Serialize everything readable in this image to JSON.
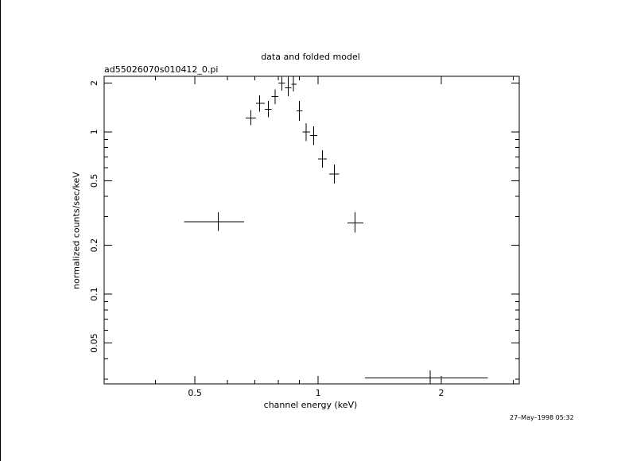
{
  "chart_data": {
    "type": "scatter",
    "title": "data and folded model",
    "subtitle": "ad55026070s010412_0.pi",
    "xlabel": "channel energy (keV)",
    "ylabel": "normalized counts/sec/keV",
    "xscale": "log",
    "yscale": "log",
    "xlim": [
      0.3,
      3.1
    ],
    "ylim": [
      0.028,
      2.2
    ],
    "x_tick_labels": [
      "0.5",
      "1",
      "2"
    ],
    "x_tick_values": [
      0.5,
      1,
      2
    ],
    "y_tick_labels": [
      "0.05",
      "0.1",
      "0.2",
      "0.5",
      "1",
      "2"
    ],
    "y_tick_values": [
      0.05,
      0.1,
      0.2,
      0.5,
      1,
      2
    ],
    "series": [
      {
        "points": [
          {
            "x": 0.57,
            "xlo": 0.47,
            "xhi": 0.66,
            "y": 0.28,
            "ylo": 0.245,
            "yhi": 0.32
          },
          {
            "x": 0.685,
            "xlo": 0.665,
            "xhi": 0.705,
            "y": 1.22,
            "ylo": 1.1,
            "yhi": 1.36
          },
          {
            "x": 0.72,
            "xlo": 0.705,
            "xhi": 0.74,
            "y": 1.5,
            "ylo": 1.33,
            "yhi": 1.68
          },
          {
            "x": 0.755,
            "xlo": 0.74,
            "xhi": 0.77,
            "y": 1.38,
            "ylo": 1.23,
            "yhi": 1.55
          },
          {
            "x": 0.785,
            "xlo": 0.77,
            "xhi": 0.8,
            "y": 1.65,
            "ylo": 1.48,
            "yhi": 1.83
          },
          {
            "x": 0.815,
            "xlo": 0.8,
            "xhi": 0.83,
            "y": 2.0,
            "ylo": 1.8,
            "yhi": 2.2
          },
          {
            "x": 0.845,
            "xlo": 0.83,
            "xhi": 0.86,
            "y": 1.87,
            "ylo": 1.66,
            "yhi": 2.2
          },
          {
            "x": 0.87,
            "xlo": 0.86,
            "xhi": 0.885,
            "y": 1.97,
            "ylo": 1.78,
            "yhi": 2.2
          },
          {
            "x": 0.9,
            "xlo": 0.885,
            "xhi": 0.915,
            "y": 1.35,
            "ylo": 1.17,
            "yhi": 1.55
          },
          {
            "x": 0.935,
            "xlo": 0.915,
            "xhi": 0.955,
            "y": 1.0,
            "ylo": 0.88,
            "yhi": 1.13
          },
          {
            "x": 0.975,
            "xlo": 0.955,
            "xhi": 0.995,
            "y": 0.95,
            "ylo": 0.83,
            "yhi": 1.08
          },
          {
            "x": 1.025,
            "xlo": 1.0,
            "xhi": 1.05,
            "y": 0.68,
            "ylo": 0.6,
            "yhi": 0.77
          },
          {
            "x": 1.095,
            "xlo": 1.065,
            "xhi": 1.125,
            "y": 0.55,
            "ylo": 0.48,
            "yhi": 0.63
          },
          {
            "x": 1.23,
            "xlo": 1.18,
            "xhi": 1.29,
            "y": 0.275,
            "ylo": 0.24,
            "yhi": 0.32
          },
          {
            "x": 1.88,
            "xlo": 1.3,
            "xhi": 2.6,
            "y": 0.0305,
            "ylo": 0.028,
            "yhi": 0.034
          }
        ]
      }
    ]
  },
  "footer": {
    "timestamp": "27–May–1998 05:32"
  }
}
